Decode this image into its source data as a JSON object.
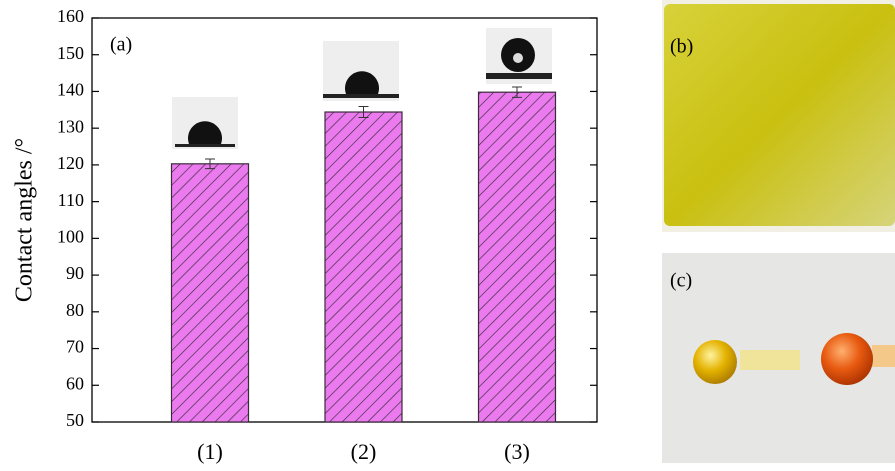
{
  "chart_data": {
    "type": "bar",
    "y_label": "Contact angles /°",
    "annotation": "(a)",
    "categories": [
      "(1)",
      "(2)",
      "(3)"
    ],
    "values": [
      120.3,
      134.4,
      139.8
    ],
    "errors": [
      1.3,
      1.5,
      1.4
    ],
    "color": "#ea7aee",
    "hatch_color": "#3a2a3a",
    "ylim": [
      50,
      160
    ],
    "yticks": [
      50,
      60,
      70,
      80,
      90,
      100,
      110,
      120,
      130,
      140,
      150,
      160
    ]
  },
  "photos": [
    {
      "label": "(b)"
    },
    {
      "label": "(c)"
    }
  ]
}
